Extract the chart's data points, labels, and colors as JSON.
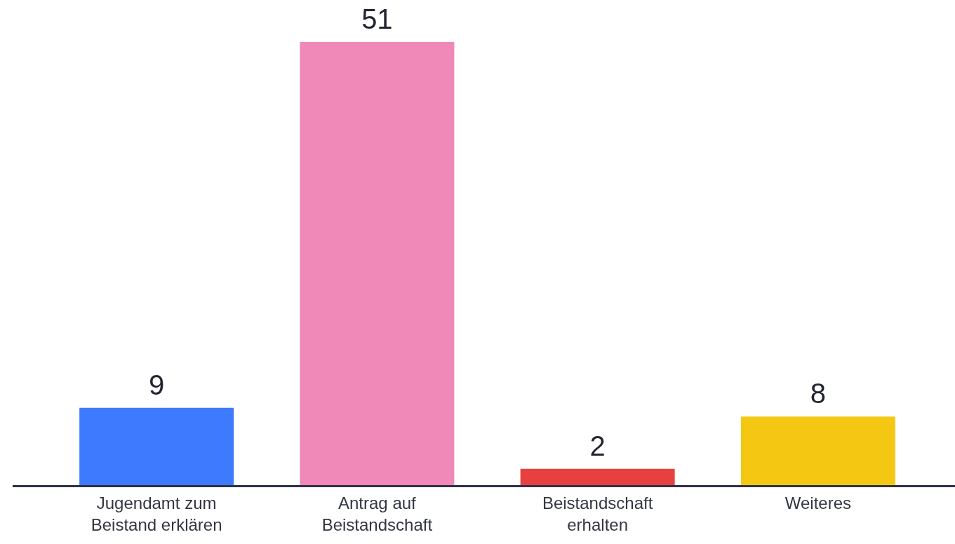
{
  "chart_data": {
    "type": "bar",
    "categories": [
      "Jugendamt zum Beistand erklären",
      "Antrag auf Beistandschaft",
      "Beistandschaft erhalten",
      "Weiteres"
    ],
    "values": [
      9,
      51,
      2,
      8
    ],
    "colors": [
      "#3d7afe",
      "#f088b8",
      "#e84040",
      "#f4c812"
    ],
    "data_labels": true
  }
}
